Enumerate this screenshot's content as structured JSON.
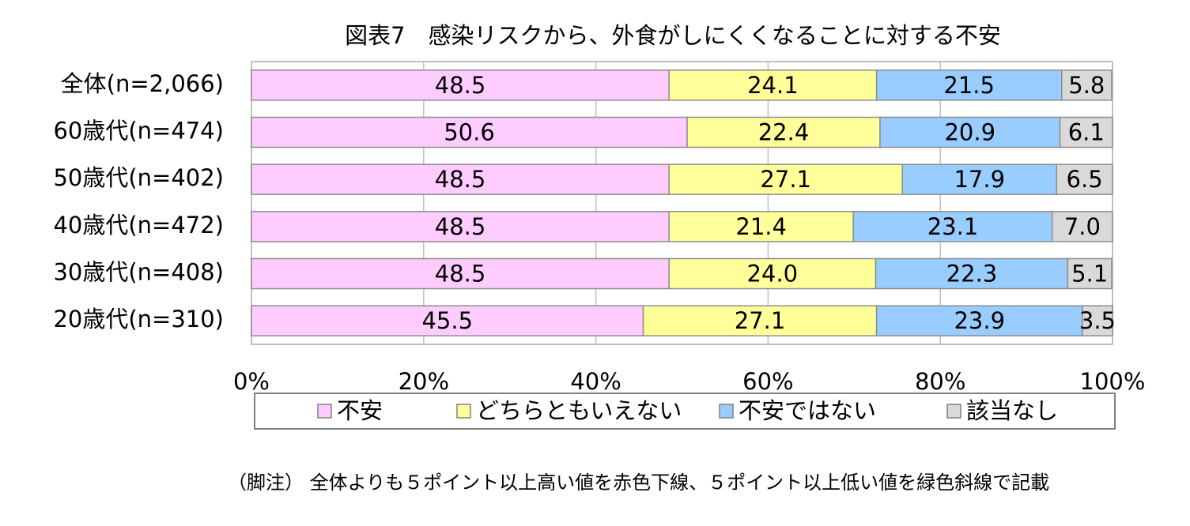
{
  "chart_data": {
    "type": "stacked-barh",
    "title": "図表7　感染リスクから、外食がしにくくなることに対する不安",
    "categories": [
      "全体(n=2,066)",
      "60歳代(n=474)",
      "50歳代(n=402)",
      "40歳代(n=472)",
      "30歳代(n=408)",
      "20歳代(n=310)"
    ],
    "series": [
      {
        "name": "不安",
        "color": "#ffccff",
        "values": [
          48.5,
          50.6,
          48.5,
          48.5,
          48.5,
          45.5
        ]
      },
      {
        "name": "どちらともいえない",
        "color": "#ffff99",
        "values": [
          24.1,
          22.4,
          27.1,
          21.4,
          24.0,
          27.1
        ],
        "value_labels": [
          "24.1",
          "22.4",
          "27.1",
          "21.4",
          "24.0",
          "27.1"
        ]
      },
      {
        "name": "不安ではない",
        "color": "#99ccff",
        "values": [
          21.5,
          20.9,
          17.9,
          23.1,
          22.3,
          23.9
        ]
      },
      {
        "name": "該当なし",
        "color": "#d9d9d9",
        "values": [
          5.8,
          6.1,
          6.5,
          7.0,
          5.1,
          3.5
        ],
        "value_labels": [
          "5.8",
          "6.1",
          "6.5",
          "7.0",
          "5.1",
          "3.5"
        ]
      }
    ],
    "xlim": [
      0,
      100
    ],
    "xticks": [
      {
        "value": 0,
        "label": "0%"
      },
      {
        "value": 20,
        "label": "20%"
      },
      {
        "value": 40,
        "label": "40%"
      },
      {
        "value": 60,
        "label": "60%"
      },
      {
        "value": 80,
        "label": "80%"
      },
      {
        "value": 100,
        "label": "100%"
      }
    ],
    "grid": true,
    "legend": "bottom",
    "footnote": "（脚注） 全体よりも５ポイント以上高い値を赤色下線、５ポイント以上低い値を緑色斜線で記載"
  }
}
